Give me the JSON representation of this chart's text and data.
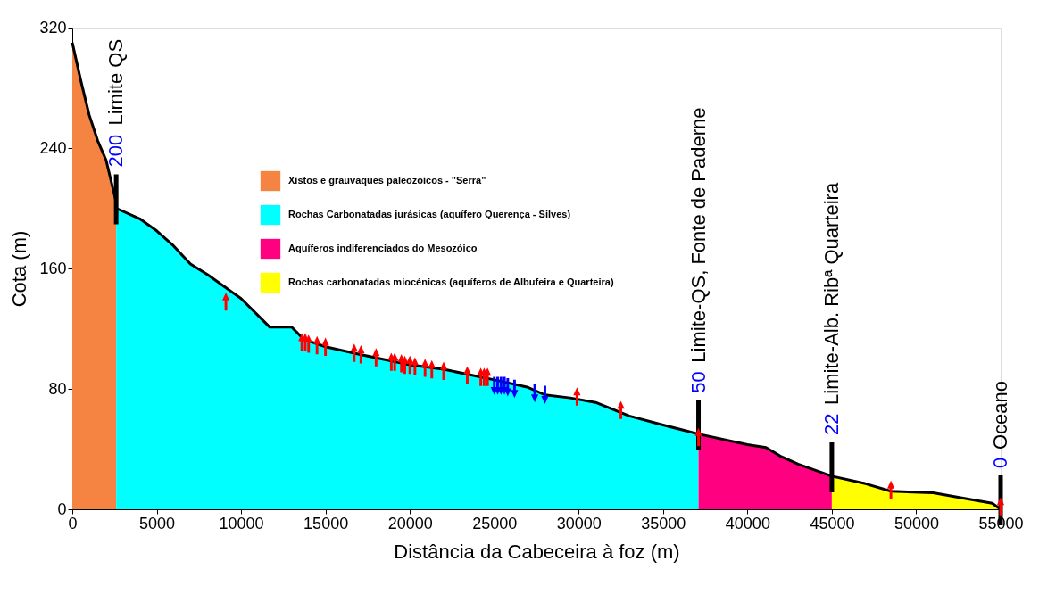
{
  "chart_data": {
    "type": "area",
    "xlabel": "Distância da Cabeceira à foz (m)",
    "ylabel": "Cota (m)",
    "xlim": [
      0,
      55000
    ],
    "xticks": [
      0,
      5000,
      10000,
      15000,
      20000,
      25000,
      30000,
      35000,
      40000,
      45000,
      50000,
      55000
    ],
    "ylim": [
      0,
      320
    ],
    "yticks": [
      0,
      80,
      160,
      240,
      320
    ],
    "grid": false,
    "legend": "top",
    "series": [
      {
        "name": "Xistos e grauvaques paleozóicos - \"Serra\"",
        "color": "#f58442",
        "x": [
          0,
          500,
          1000,
          1500,
          2000,
          2600
        ],
        "values": [
          310,
          285,
          262,
          245,
          232,
          204
        ]
      },
      {
        "name": "Rochas Carbonatadas jurásicas (aquífero Querença - Silves)",
        "color": "#00ffff",
        "x": [
          2600,
          4000,
          5000,
          6000,
          7000,
          8000,
          9000,
          10000,
          11700,
          13000,
          13700,
          15000,
          17000,
          20000,
          22000,
          25000,
          27000,
          28000,
          29500,
          31000,
          33000,
          35000,
          37100
        ],
        "values": [
          200,
          193,
          185,
          175,
          163,
          156,
          148,
          140,
          121,
          121,
          113,
          108,
          103,
          96,
          93,
          86,
          81,
          76,
          74,
          71,
          62,
          56,
          50
        ]
      },
      {
        "name": "Aquíferos indiferenciados do Mesozóico",
        "color": "#ff0080",
        "x": [
          37100,
          40000,
          41100,
          42000,
          43000,
          45000
        ],
        "values": [
          50,
          43,
          41,
          35,
          30,
          22
        ]
      },
      {
        "name": "Rochas carbonatadas miocénicas (aquíferos de Albufeira e Quarteira)",
        "color": "#ffff00",
        "x": [
          45000,
          47000,
          48500,
          51000,
          53000,
          54500,
          55000
        ],
        "values": [
          22,
          17,
          12,
          11,
          7,
          4,
          0
        ]
      },
      {
        "type": "scatter",
        "marker": "triangle",
        "color": "#ff0000",
        "x": [
          9100,
          13600,
          13800,
          14000,
          14500,
          15000,
          16700,
          17100,
          18000,
          18900,
          19100,
          19500,
          19700,
          20000,
          20300,
          20900,
          21300,
          22000,
          23400,
          24200,
          24400,
          24600,
          29900,
          32500,
          37100,
          48500,
          55000
        ],
        "values": [
          138,
          111,
          111,
          110,
          109,
          108,
          104,
          103,
          101,
          98,
          98,
          97,
          96,
          96,
          95,
          94,
          93,
          92,
          89,
          88,
          88,
          88,
          75,
          66,
          48,
          13,
          2
        ]
      },
      {
        "type": "scatter",
        "marker": "triangle-down",
        "color": "#0000ff",
        "x": [
          25000,
          25200,
          25400,
          25600,
          25800,
          26200,
          27400,
          28000
        ],
        "values": [
          82,
          82,
          82,
          82,
          81,
          80,
          77,
          76
        ]
      }
    ],
    "ref_lines": [
      {
        "axis": "x",
        "value": 2600,
        "label": "Limite QS",
        "color": "#000000"
      },
      {
        "axis": "x",
        "value": 37100,
        "label": "Limite-QS, Fonte de Paderne",
        "color": "#000000"
      },
      {
        "axis": "x",
        "value": 45000,
        "label": "Limite-Alb. Ribª Quarteira",
        "color": "#000000"
      },
      {
        "axis": "x",
        "value": 55000,
        "label": "Oceano",
        "color": "#000000"
      }
    ],
    "annotations": [
      {
        "text": "200",
        "x": 2600,
        "y": 200
      },
      {
        "text": "50",
        "x": 37100,
        "y": 50
      },
      {
        "text": "22",
        "x": 45000,
        "y": 22
      },
      {
        "text": "0",
        "x": 55000,
        "y": 0
      }
    ]
  }
}
